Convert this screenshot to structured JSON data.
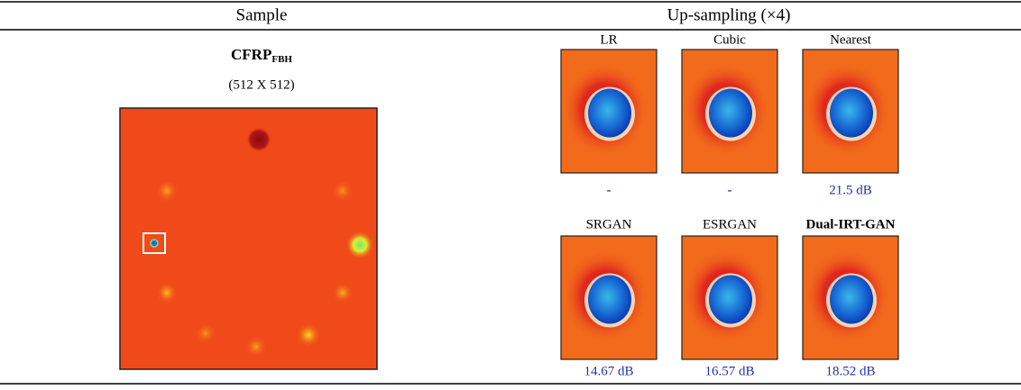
{
  "header": {
    "sample": "Sample",
    "upsampling": "Up-sampling (×4)"
  },
  "sample": {
    "name": "CFRP",
    "subscript": "FBH",
    "size": "(512 X 512)"
  },
  "methods": [
    {
      "name": "LR",
      "metric": "-"
    },
    {
      "name": "Cubic",
      "metric": "-"
    },
    {
      "name": "Nearest",
      "metric": "21.5 dB"
    },
    {
      "name": "SRGAN",
      "metric": "14.67 dB"
    },
    {
      "name": "ESRGAN",
      "metric": "16.57 dB"
    },
    {
      "name": "Dual-IRT-GAN",
      "metric": "18.52 dB"
    }
  ]
}
